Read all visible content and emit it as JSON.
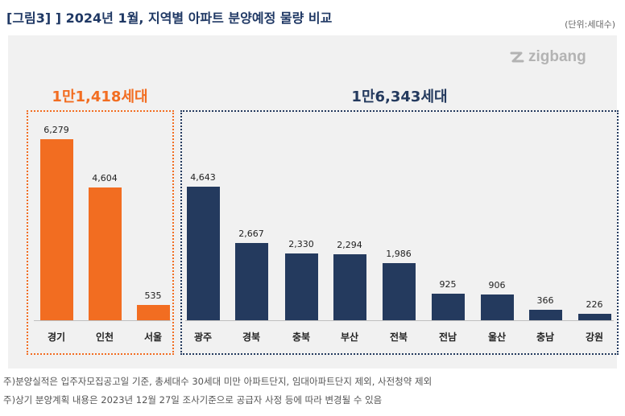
{
  "header": {
    "title": "[그림3] ] 2024년 1월, 지역별 아파트 분양예정 물량 비교",
    "unit": "(단위:세대수)"
  },
  "brand": {
    "logo_text": "zigbang"
  },
  "groups": {
    "capital": {
      "total_label": "1만1,418세대",
      "color": "#f26d21"
    },
    "non_capital": {
      "total_label": "1만6,343세대",
      "color": "#243a5e"
    }
  },
  "chart_data": {
    "type": "bar",
    "title": "2024년 1월, 지역별 아파트 분양예정 물량 비교",
    "ylabel": "세대수",
    "ylim": [
      0,
      7000
    ],
    "categories": [
      "경기",
      "인천",
      "서울",
      "광주",
      "경북",
      "충북",
      "부산",
      "전북",
      "전남",
      "울산",
      "충남",
      "강원"
    ],
    "values": [
      6279,
      4604,
      535,
      4643,
      2667,
      2330,
      2294,
      1986,
      925,
      906,
      366,
      226
    ],
    "value_labels": [
      "6,279",
      "4,604",
      "535",
      "4,643",
      "2,667",
      "2,330",
      "2,294",
      "1,986",
      "925",
      "906",
      "366",
      "226"
    ],
    "group_index": [
      "capital",
      "capital",
      "capital",
      "non_capital",
      "non_capital",
      "non_capital",
      "non_capital",
      "non_capital",
      "non_capital",
      "non_capital",
      "non_capital",
      "non_capital"
    ]
  },
  "notes": [
    "주)분양실적은 입주자모집공고일 기준, 총세대수 30세대 미만 아파트단지, 임대아파트단지 제외, 사전청약 제외",
    "주)상기 분양계획 내용은 2023년 12월 27일 조사기준으로 공급자 사정 등에 따라 변경될 수 있음"
  ]
}
